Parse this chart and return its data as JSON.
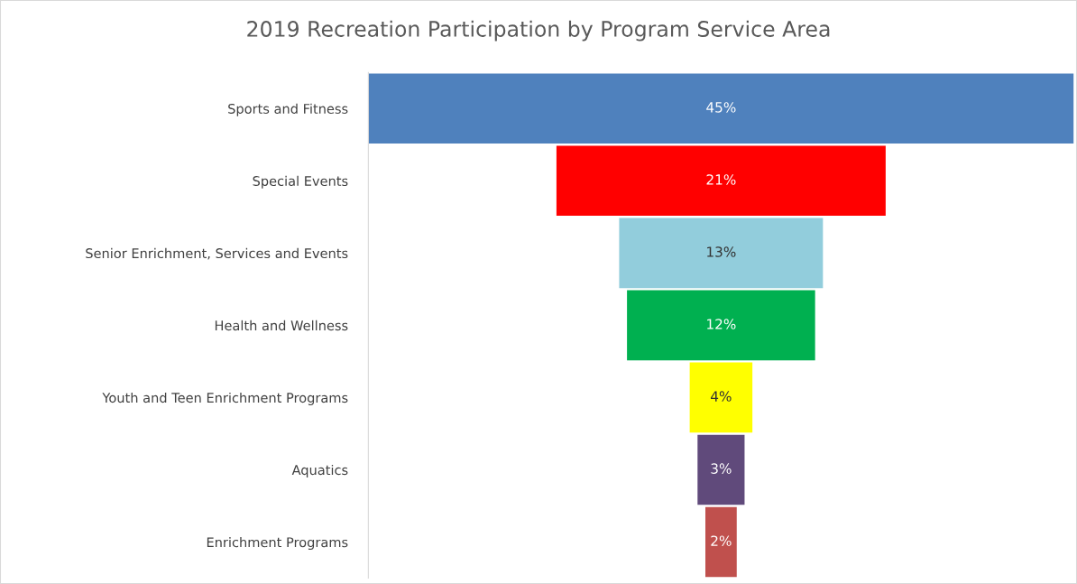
{
  "chart_data": {
    "type": "other",
    "title": "2019 Recreation Participation by Program Service Area",
    "categories": [
      "Sports and Fitness",
      "Special Events",
      "Senior Enrichment, Services and Events",
      "Health and Wellness",
      "Youth and Teen Enrichment Programs",
      "Aquatics",
      "Enrichment Programs"
    ],
    "values": [
      45,
      21,
      13,
      12,
      4,
      3,
      2
    ],
    "colors": [
      "#4f81bd",
      "#ff0000",
      "#92cddc",
      "#00b050",
      "#ffff00",
      "#604a7b",
      "#c0504d"
    ],
    "value_labels": [
      "45%",
      "21%",
      "13%",
      "12%",
      "4%",
      "3%",
      "2%"
    ]
  }
}
